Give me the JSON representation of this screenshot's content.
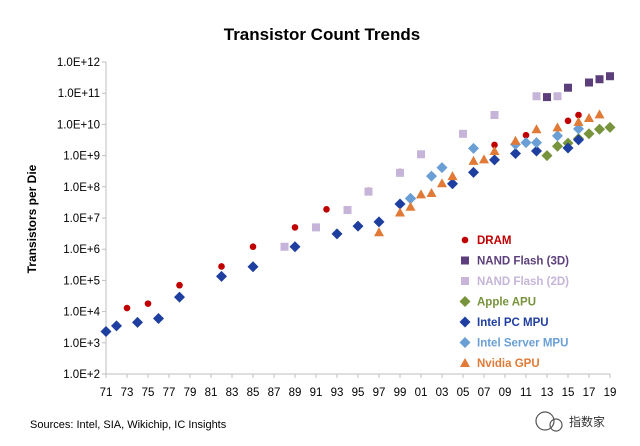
{
  "chart_data": {
    "type": "scatter",
    "title": "Transistor Count Trends",
    "ylabel": "Transistors per Die",
    "xlabel": "",
    "y_scale": "log",
    "ylim": [
      100,
      1000000000000
    ],
    "xlim": [
      71,
      119
    ],
    "y_tick_labels": [
      "1.0E+2",
      "1.0E+3",
      "1.0E+4",
      "1.0E+5",
      "1.0E+6",
      "1.0E+7",
      "1.0E+8",
      "1.0E+9",
      "1.0E+10",
      "1.0E+11",
      "1.0E+12"
    ],
    "x_tick_labels": [
      "71",
      "73",
      "75",
      "77",
      "79",
      "81",
      "83",
      "85",
      "87",
      "89",
      "91",
      "93",
      "95",
      "97",
      "99",
      "01",
      "03",
      "05",
      "07",
      "09",
      "11",
      "13",
      "15",
      "17",
      "19"
    ],
    "legend_position": "lower-right",
    "grid": false,
    "series": [
      {
        "name": "DRAM",
        "marker": "circle",
        "color": "#c00000",
        "points": [
          [
            73,
            13000
          ],
          [
            75,
            18000
          ],
          [
            78,
            70000
          ],
          [
            82,
            280000
          ],
          [
            85,
            1200000
          ],
          [
            89,
            5000000
          ],
          [
            92,
            19000000
          ],
          [
            96,
            75000000
          ],
          [
            99,
            300000000
          ],
          [
            101,
            1100000000
          ],
          [
            108,
            2200000000
          ],
          [
            111,
            4500000000
          ],
          [
            115,
            13000000000
          ],
          [
            116,
            20000000000
          ]
        ]
      },
      {
        "name": "NAND Flash (3D)",
        "marker": "square",
        "color": "#5c3f7a",
        "points": [
          [
            113,
            75000000000
          ],
          [
            115,
            150000000000
          ],
          [
            117,
            220000000000
          ],
          [
            118,
            280000000000
          ],
          [
            119,
            350000000000
          ]
        ]
      },
      {
        "name": "NAND Flash (2D)",
        "marker": "square",
        "color": "#c6b5d9",
        "points": [
          [
            88,
            1200000
          ],
          [
            91,
            5000000
          ],
          [
            94,
            18000000
          ],
          [
            96,
            70000000
          ],
          [
            99,
            280000000
          ],
          [
            101,
            1100000000
          ],
          [
            105,
            5000000000
          ],
          [
            108,
            20000000000
          ],
          [
            112,
            80000000000
          ],
          [
            114,
            80000000000
          ]
        ]
      },
      {
        "name": "Apple APU",
        "marker": "diamond",
        "color": "#77933c",
        "points": [
          [
            113,
            1000000000
          ],
          [
            114,
            2000000000
          ],
          [
            115,
            2500000000
          ],
          [
            116,
            3500000000
          ],
          [
            117,
            5000000000
          ],
          [
            118,
            7000000000
          ],
          [
            119,
            8000000000
          ]
        ]
      },
      {
        "name": "Intel PC MPU",
        "marker": "diamond",
        "color": "#1f3fa0",
        "points": [
          [
            71,
            2300
          ],
          [
            72,
            3500
          ],
          [
            74,
            4500
          ],
          [
            76,
            6000
          ],
          [
            78,
            29000
          ],
          [
            82,
            134000
          ],
          [
            85,
            275000
          ],
          [
            89,
            1200000
          ],
          [
            93,
            3100000
          ],
          [
            95,
            5500000
          ],
          [
            97,
            7500000
          ],
          [
            99,
            28000000
          ],
          [
            100,
            42000000
          ],
          [
            104,
            125000000
          ],
          [
            106,
            291000000
          ],
          [
            108,
            731000000
          ],
          [
            110,
            1170000000
          ],
          [
            112,
            1400000000
          ],
          [
            115,
            1750000000
          ],
          [
            116,
            3200000000
          ]
        ]
      },
      {
        "name": "Intel Server MPU",
        "marker": "diamond",
        "color": "#6a9fd6",
        "points": [
          [
            100,
            42000000
          ],
          [
            102,
            220000000
          ],
          [
            103,
            410000000
          ],
          [
            106,
            1700000000
          ],
          [
            110,
            2300000000
          ],
          [
            111,
            2600000000
          ],
          [
            112,
            2600000000
          ],
          [
            114,
            4300000000
          ],
          [
            116,
            7200000000
          ]
        ]
      },
      {
        "name": "Nvidia GPU",
        "marker": "triangle",
        "color": "#e07a36",
        "points": [
          [
            97,
            3500000
          ],
          [
            99,
            15000000
          ],
          [
            100,
            23000000
          ],
          [
            101,
            57000000
          ],
          [
            102,
            63000000
          ],
          [
            103,
            130000000
          ],
          [
            104,
            220000000
          ],
          [
            106,
            680000000
          ],
          [
            107,
            754000000
          ],
          [
            108,
            1400000000
          ],
          [
            110,
            3000000000
          ],
          [
            112,
            7000000000
          ],
          [
            114,
            8000000000
          ],
          [
            116,
            12000000000
          ],
          [
            117,
            16000000000
          ],
          [
            118,
            21000000000
          ]
        ]
      }
    ]
  },
  "footer": {
    "source": "Sources:  Intel, SIA, Wikichip, IC Insights",
    "watermark": "指数家"
  }
}
